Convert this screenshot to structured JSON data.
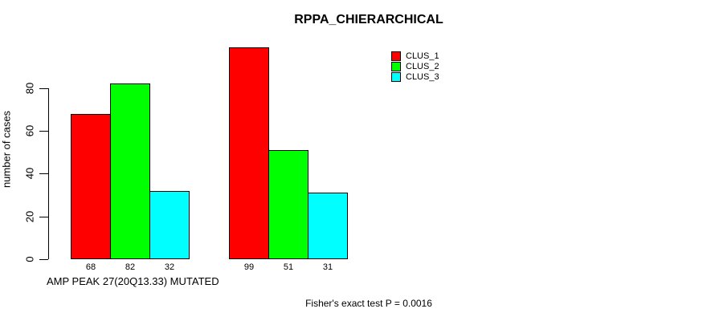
{
  "chart_data": {
    "type": "bar",
    "title": "RPPA_CHIERARCHICAL",
    "ylabel": "number of cases",
    "xlabel": "AMP PEAK 27(20Q13.33) MUTATED",
    "footnote": "Fisher's exact test P = 0.0016",
    "yticks": [
      0,
      20,
      40,
      60,
      80
    ],
    "ylim": [
      0,
      80
    ],
    "grid": false,
    "legend_position": "top-right",
    "series": [
      {
        "name": "CLUS_1",
        "color": "#ff0000",
        "values": [
          68,
          99
        ]
      },
      {
        "name": "CLUS_2",
        "color": "#00ff00",
        "values": [
          82,
          51
        ]
      },
      {
        "name": "CLUS_3",
        "color": "#00ffff",
        "values": [
          32,
          31
        ]
      }
    ],
    "bar_value_labels": [
      [
        68,
        82,
        32
      ],
      [
        99,
        51,
        31
      ]
    ],
    "axis_color": "#000000",
    "background": "#ffffff"
  }
}
